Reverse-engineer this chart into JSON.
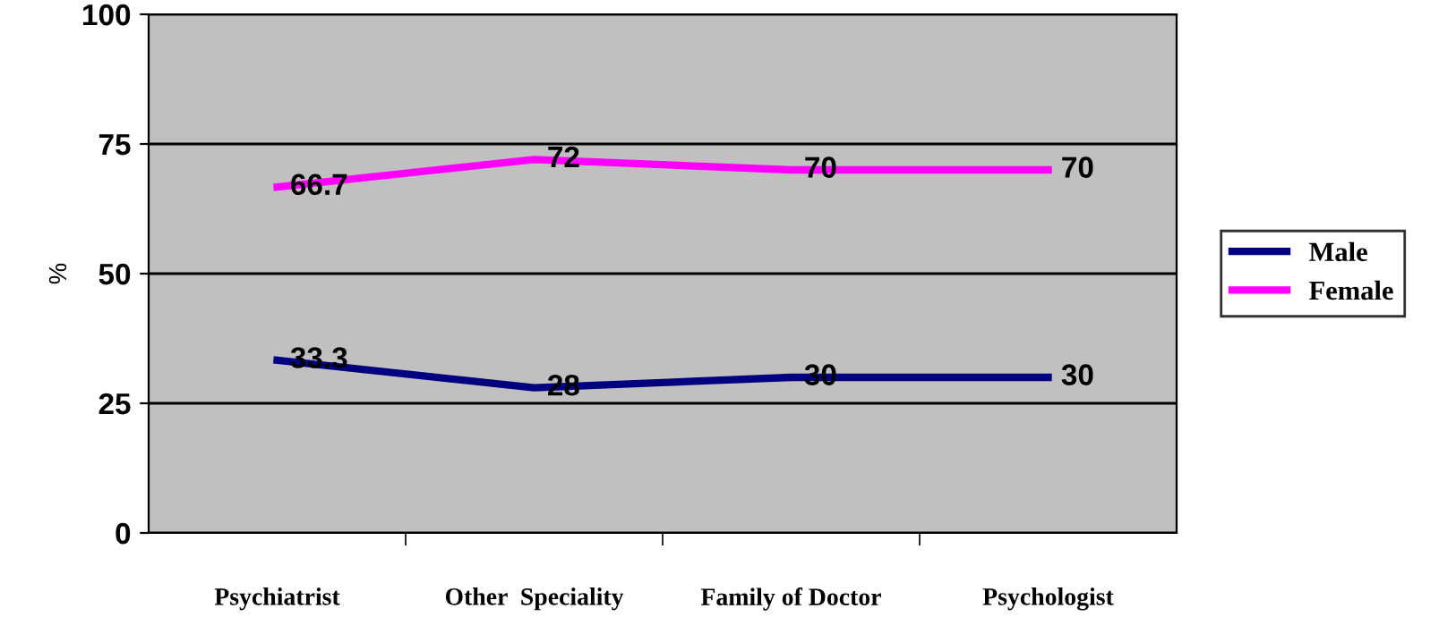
{
  "chart_data": {
    "type": "line",
    "ylabel": "%",
    "categories": [
      "Psychiatrist",
      "Other  Speciality",
      "Family of Doctor",
      "Psychologist"
    ],
    "series": [
      {
        "name": "Male",
        "color": "#000080",
        "values": [
          33.3,
          28,
          30,
          30
        ]
      },
      {
        "name": "Female",
        "color": "#ff00ff",
        "values": [
          66.7,
          72,
          70,
          70
        ]
      }
    ],
    "ylim": [
      0,
      100
    ],
    "yticks": [
      0,
      25,
      50,
      75,
      100
    ],
    "grid": "y",
    "legend": "right",
    "data_labels": true,
    "line_style": "solid"
  }
}
